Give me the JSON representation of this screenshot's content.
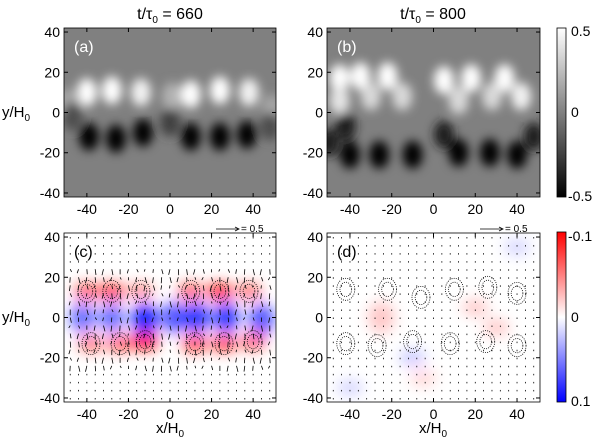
{
  "chart_data": [
    {
      "type": "heatmap",
      "panel_label": "(a)",
      "title": "t/τ₀ = 660",
      "title_main": "t/τ",
      "title_sub": "0",
      "title_value": " = 660",
      "xlabel": "",
      "ylabel_main": "y/H",
      "ylabel_sub": "0",
      "xlim": [
        -51,
        51
      ],
      "ylim": [
        -42,
        42
      ],
      "xticks": [
        -40,
        -20,
        0,
        20,
        40
      ],
      "yticks": [
        -40,
        -20,
        0,
        20,
        40
      ],
      "colormap": "gray",
      "clim": [
        -0.5,
        0.5
      ],
      "background_value": 0,
      "features": [
        {
          "x": -40,
          "y": 10,
          "value": 0.5
        },
        {
          "x": -28,
          "y": 11,
          "value": 0.5
        },
        {
          "x": -14,
          "y": 10,
          "value": 0.45
        },
        {
          "x": 1,
          "y": 8,
          "value": 0.2
        },
        {
          "x": 10,
          "y": 9,
          "value": 0.5
        },
        {
          "x": 24,
          "y": 11,
          "value": 0.5
        },
        {
          "x": 38,
          "y": 10,
          "value": 0.45
        },
        {
          "x": 49,
          "y": 2,
          "value": 0.15
        },
        {
          "x": -50,
          "y": 5,
          "value": 0.15
        },
        {
          "x": -39,
          "y": -12,
          "value": -0.5
        },
        {
          "x": -26,
          "y": -13,
          "value": -0.5
        },
        {
          "x": -13,
          "y": -10,
          "value": -0.5
        },
        {
          "x": 0,
          "y": -5,
          "value": -0.25
        },
        {
          "x": 10,
          "y": -12,
          "value": -0.5
        },
        {
          "x": 24,
          "y": -12,
          "value": -0.5
        },
        {
          "x": 37,
          "y": -11,
          "value": -0.5
        },
        {
          "x": -47,
          "y": -2,
          "value": -0.2
        },
        {
          "x": 48,
          "y": -7,
          "value": -0.2
        }
      ]
    },
    {
      "type": "heatmap",
      "panel_label": "(b)",
      "title_main": "t/τ",
      "title_sub": "0",
      "title_value": " = 800",
      "xlim": [
        -51,
        51
      ],
      "ylim": [
        -42,
        42
      ],
      "xticks": [
        -40,
        -20,
        0,
        20,
        40
      ],
      "yticks": [
        -40,
        -20,
        0,
        20,
        40
      ],
      "colormap": "gray",
      "clim": [
        -0.5,
        0.5
      ],
      "background_value": 0,
      "colorbar_ticks": [
        "0.5",
        "0",
        "-0.5"
      ],
      "features": [
        {
          "x": -45,
          "y": 17,
          "value": 0.5
        },
        {
          "x": -35,
          "y": 18,
          "value": 0.5
        },
        {
          "x": -22,
          "y": 18,
          "value": 0.5
        },
        {
          "x": -45,
          "y": 6,
          "value": 0.4
        },
        {
          "x": -30,
          "y": 8,
          "value": 0.35
        },
        {
          "x": -15,
          "y": 8,
          "value": 0.35
        },
        {
          "x": 5,
          "y": 16,
          "value": 0.5
        },
        {
          "x": 18,
          "y": 17,
          "value": 0.5
        },
        {
          "x": 34,
          "y": 17,
          "value": 0.5
        },
        {
          "x": 12,
          "y": 6,
          "value": 0.35
        },
        {
          "x": 28,
          "y": 8,
          "value": 0.35
        },
        {
          "x": 42,
          "y": 8,
          "value": 0.45
        },
        {
          "x": -40,
          "y": -21,
          "value": -0.5
        },
        {
          "x": -26,
          "y": -21,
          "value": -0.5
        },
        {
          "x": -10,
          "y": -21,
          "value": -0.5
        },
        {
          "x": 12,
          "y": -20,
          "value": -0.5
        },
        {
          "x": 27,
          "y": -20,
          "value": -0.5
        },
        {
          "x": 40,
          "y": -21,
          "value": -0.5
        },
        {
          "x": -42,
          "y": -7,
          "value": -0.4
        },
        {
          "x": 5,
          "y": -11,
          "value": -0.4
        },
        {
          "x": -50,
          "y": -15,
          "value": -0.4
        },
        {
          "x": 48,
          "y": -12,
          "value": -0.4
        }
      ]
    },
    {
      "type": "heatmap",
      "panel_label": "(c)",
      "xlabel_main": "x/H",
      "xlabel_sub": "0",
      "ylabel_main": "y/H",
      "ylabel_sub": "0",
      "xlim": [
        -51,
        51
      ],
      "ylim": [
        -42,
        42
      ],
      "xticks": [
        -40,
        -20,
        0,
        20,
        40
      ],
      "yticks": [
        -40,
        -20,
        0,
        20,
        40
      ],
      "colormap": "red-white-blue",
      "clim": [
        -0.1,
        0.1
      ],
      "vector_key": "= 0.5",
      "overlay": "velocity vectors and contours",
      "features": [
        {
          "x": -40,
          "y": 13,
          "value": -0.06
        },
        {
          "x": -28,
          "y": 13,
          "value": -0.07
        },
        {
          "x": -14,
          "y": 13,
          "value": -0.04
        },
        {
          "x": 10,
          "y": 13,
          "value": -0.06
        },
        {
          "x": 24,
          "y": 13,
          "value": -0.08
        },
        {
          "x": 38,
          "y": 13,
          "value": -0.05
        },
        {
          "x": -38,
          "y": -13,
          "value": -0.05
        },
        {
          "x": -24,
          "y": -13,
          "value": -0.06
        },
        {
          "x": -12,
          "y": -12,
          "value": -0.09
        },
        {
          "x": 12,
          "y": -13,
          "value": -0.07
        },
        {
          "x": 26,
          "y": -13,
          "value": -0.07
        },
        {
          "x": 40,
          "y": -12,
          "value": -0.06
        },
        {
          "x": -42,
          "y": 0,
          "value": 0.05
        },
        {
          "x": -28,
          "y": 0,
          "value": 0.05
        },
        {
          "x": -12,
          "y": -1,
          "value": 0.08
        },
        {
          "x": 2,
          "y": 0,
          "value": 0.06
        },
        {
          "x": 13,
          "y": 0,
          "value": 0.07
        },
        {
          "x": 27,
          "y": 0,
          "value": 0.07
        },
        {
          "x": 44,
          "y": -1,
          "value": 0.06
        }
      ]
    },
    {
      "type": "heatmap",
      "panel_label": "(d)",
      "xlabel_main": "x/H",
      "xlabel_sub": "0",
      "xlim": [
        -51,
        51
      ],
      "ylim": [
        -42,
        42
      ],
      "xticks": [
        -40,
        -20,
        0,
        20,
        40
      ],
      "yticks": [
        -40,
        -20,
        0,
        20,
        40
      ],
      "colormap": "red-white-blue",
      "clim": [
        -0.1,
        0.1
      ],
      "colorbar_ticks": [
        "-0.1",
        "0",
        "0.1"
      ],
      "vector_key": "= 0.5",
      "overlay": "velocity vectors and contours",
      "features": [
        {
          "x": -25,
          "y": 0,
          "value": -0.02
        },
        {
          "x": 20,
          "y": 5,
          "value": -0.02
        },
        {
          "x": 30,
          "y": -5,
          "value": -0.02
        },
        {
          "x": -5,
          "y": -30,
          "value": -0.015
        },
        {
          "x": 40,
          "y": 35,
          "value": 0.015
        },
        {
          "x": -40,
          "y": -35,
          "value": 0.015
        },
        {
          "x": -10,
          "y": -20,
          "value": 0.02
        }
      ],
      "contours": [
        {
          "x": -42,
          "y": 14
        },
        {
          "x": -22,
          "y": 14
        },
        {
          "x": -6,
          "y": 10
        },
        {
          "x": 10,
          "y": 14
        },
        {
          "x": 26,
          "y": 15
        },
        {
          "x": 40,
          "y": 12
        },
        {
          "x": -42,
          "y": -13
        },
        {
          "x": -27,
          "y": -14
        },
        {
          "x": -10,
          "y": -12
        },
        {
          "x": 8,
          "y": -13
        },
        {
          "x": 25,
          "y": -12
        },
        {
          "x": 40,
          "y": -14
        }
      ]
    }
  ]
}
